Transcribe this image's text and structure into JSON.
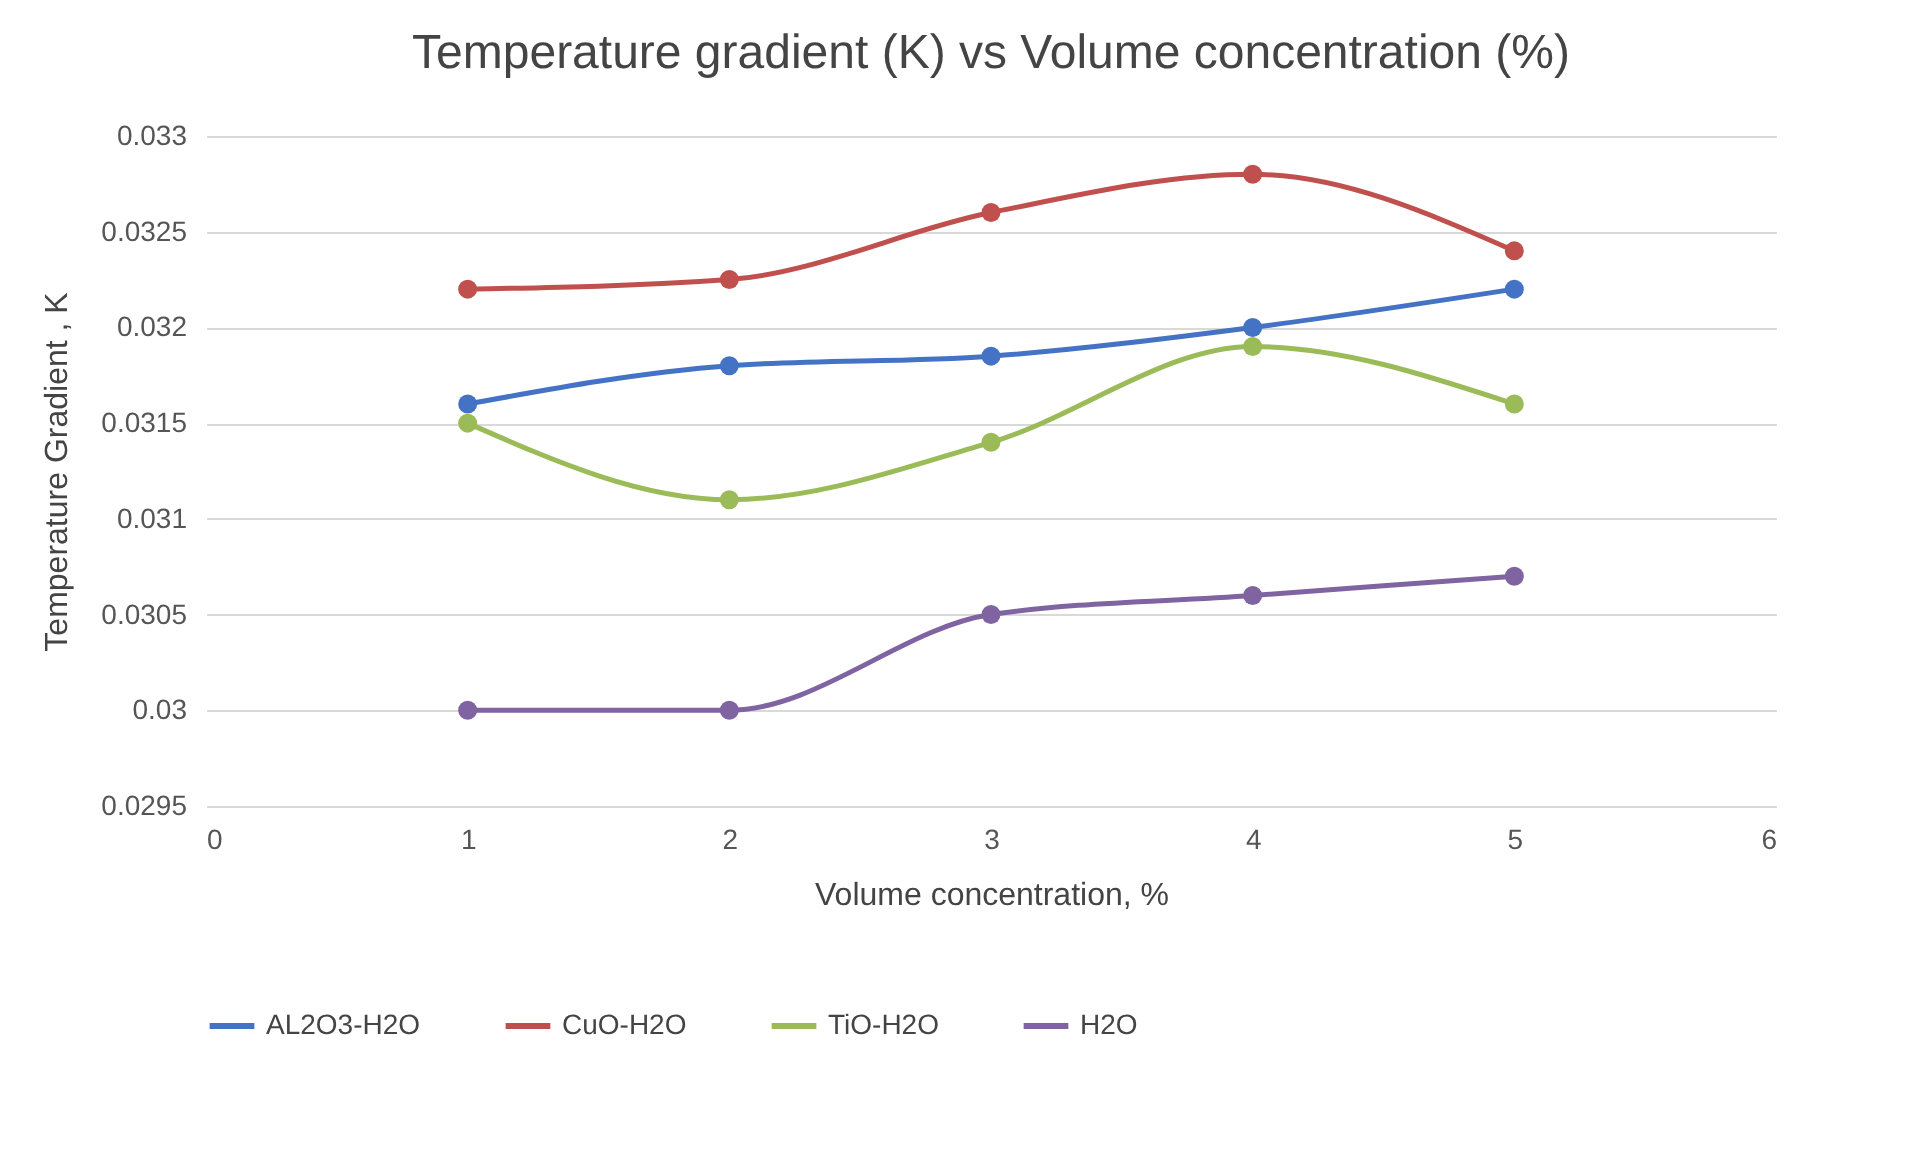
{
  "chart_data": {
    "type": "line",
    "title": "Temperature gradient (K)  vs Volume concentration  (%)",
    "xlabel": "Volume concentration, %",
    "ylabel": "Temperature Gradient , K",
    "x": [
      1,
      2,
      3,
      4,
      5
    ],
    "series": [
      {
        "name": "AL2O3-H2O",
        "color": "#4472c4",
        "values": [
          0.0316,
          0.0318,
          0.03185,
          0.032,
          0.0322
        ]
      },
      {
        "name": "CuO-H2O",
        "color": "#c0504d",
        "values": [
          0.0322,
          0.03225,
          0.0326,
          0.0328,
          0.0324
        ]
      },
      {
        "name": "TiO-H2O",
        "color": "#9bbb59",
        "values": [
          0.0315,
          0.0311,
          0.0314,
          0.0319,
          0.0316
        ]
      },
      {
        "name": "H2O",
        "color": "#8064a2",
        "values": [
          0.03,
          0.03,
          0.0305,
          0.0306,
          0.0307
        ]
      }
    ],
    "xlim": [
      0,
      6
    ],
    "xticks": [
      0,
      1,
      2,
      3,
      4,
      5,
      6
    ],
    "ylim": [
      0.0295,
      0.033
    ],
    "yticks": [
      0.0295,
      0.03,
      0.0305,
      0.031,
      0.0315,
      0.032,
      0.0325,
      0.033
    ],
    "grid": "y",
    "legend": "bottom",
    "marker": "circle",
    "line_style": "solid"
  }
}
